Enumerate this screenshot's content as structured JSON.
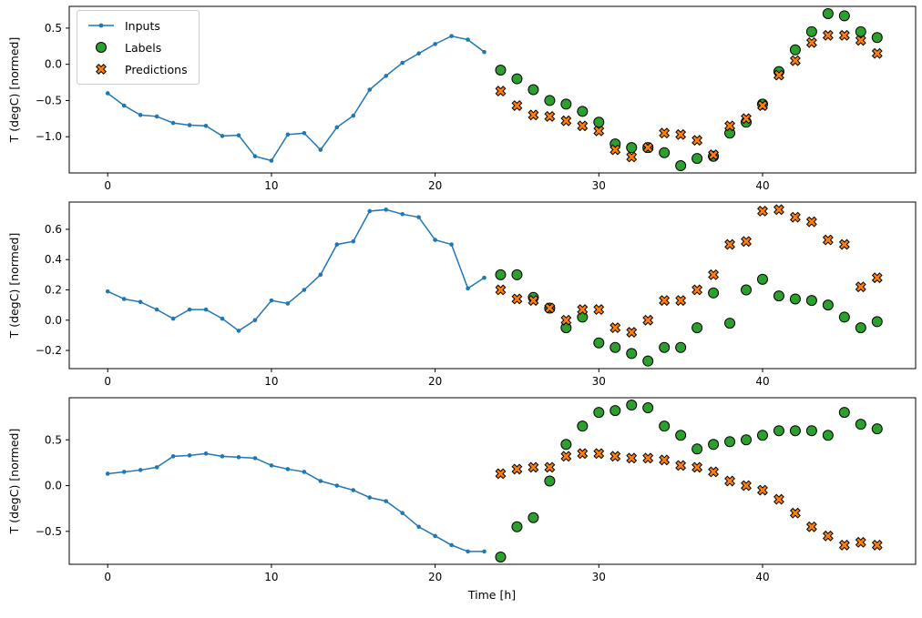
{
  "chart_data": [
    {
      "type": "line",
      "title": "",
      "ylabel": "T (degC) [normed]",
      "xlabel": "",
      "grid": false,
      "legend_position": "upper-left",
      "xlim": [
        -2.35,
        49.35
      ],
      "ylim": [
        -1.5,
        0.8
      ],
      "xticks": [
        0,
        10,
        20,
        30,
        40
      ],
      "yticks": [
        0.5,
        0.0,
        -0.5,
        -1.0
      ],
      "series": [
        {
          "name": "Inputs",
          "marker": "line-dot",
          "color": "#1f77b4",
          "x": [
            0,
            1,
            2,
            3,
            4,
            5,
            6,
            7,
            8,
            9,
            10,
            11,
            12,
            13,
            14,
            15,
            16,
            17,
            18,
            19,
            20,
            21,
            22,
            23
          ],
          "y": [
            -0.4,
            -0.57,
            -0.7,
            -0.72,
            -0.81,
            -0.84,
            -0.85,
            -0.99,
            -0.98,
            -1.27,
            -1.33,
            -0.97,
            -0.95,
            -1.18,
            -0.87,
            -0.71,
            -0.35,
            -0.16,
            0.02,
            0.15,
            0.28,
            0.39,
            0.34,
            0.17
          ]
        },
        {
          "name": "Labels",
          "marker": "circle",
          "color": "#2ca02c",
          "x": [
            24,
            25,
            26,
            27,
            28,
            29,
            30,
            31,
            32,
            33,
            34,
            35,
            36,
            37,
            38,
            39,
            40,
            41,
            42,
            43,
            44,
            45,
            46,
            47
          ],
          "y": [
            -0.08,
            -0.2,
            -0.35,
            -0.5,
            -0.55,
            -0.65,
            -0.8,
            -1.1,
            -1.15,
            -1.15,
            -1.22,
            -1.4,
            -1.3,
            -1.27,
            -0.95,
            -0.8,
            -0.55,
            -0.1,
            0.2,
            0.45,
            0.7,
            0.67,
            0.45,
            0.37
          ]
        },
        {
          "name": "Predictions",
          "marker": "x",
          "color": "#ff7f0e",
          "x": [
            24,
            25,
            26,
            27,
            28,
            29,
            30,
            31,
            32,
            33,
            34,
            35,
            36,
            37,
            38,
            39,
            40,
            41,
            42,
            43,
            44,
            45,
            46,
            47
          ],
          "y": [
            -0.37,
            -0.57,
            -0.7,
            -0.72,
            -0.78,
            -0.85,
            -0.92,
            -1.18,
            -1.28,
            -1.15,
            -0.95,
            -0.97,
            -1.05,
            -1.25,
            -0.85,
            -0.75,
            -0.57,
            -0.15,
            0.05,
            0.3,
            0.4,
            0.4,
            0.33,
            0.15
          ]
        }
      ]
    },
    {
      "type": "line",
      "title": "",
      "ylabel": "T (degC) [normed]",
      "xlabel": "",
      "grid": false,
      "xlim": [
        -2.35,
        49.35
      ],
      "ylim": [
        -0.32,
        0.78
      ],
      "xticks": [
        0,
        10,
        20,
        30,
        40
      ],
      "yticks": [
        0.6,
        0.4,
        0.2,
        0.0,
        -0.2
      ],
      "series": [
        {
          "name": "Inputs",
          "marker": "line-dot",
          "color": "#1f77b4",
          "x": [
            0,
            1,
            2,
            3,
            4,
            5,
            6,
            7,
            8,
            9,
            10,
            11,
            12,
            13,
            14,
            15,
            16,
            17,
            18,
            19,
            20,
            21,
            22,
            23
          ],
          "y": [
            0.19,
            0.14,
            0.12,
            0.07,
            0.01,
            0.07,
            0.07,
            0.01,
            -0.07,
            0.0,
            0.13,
            0.11,
            0.2,
            0.3,
            0.5,
            0.52,
            0.72,
            0.73,
            0.7,
            0.68,
            0.53,
            0.5,
            0.21,
            0.28
          ]
        },
        {
          "name": "Labels",
          "marker": "circle",
          "color": "#2ca02c",
          "x": [
            24,
            25,
            26,
            27,
            28,
            29,
            30,
            31,
            32,
            33,
            34,
            35,
            36,
            37,
            38,
            39,
            40,
            41,
            42,
            43,
            44,
            45,
            46,
            47
          ],
          "y": [
            0.3,
            0.3,
            0.15,
            0.08,
            -0.05,
            0.02,
            -0.15,
            -0.18,
            -0.22,
            -0.27,
            -0.18,
            -0.18,
            -0.05,
            0.18,
            -0.02,
            0.2,
            0.27,
            0.16,
            0.14,
            0.13,
            0.1,
            0.02,
            -0.05,
            -0.01
          ]
        },
        {
          "name": "Predictions",
          "marker": "x",
          "color": "#ff7f0e",
          "x": [
            24,
            25,
            26,
            27,
            28,
            29,
            30,
            31,
            32,
            33,
            34,
            35,
            36,
            37,
            38,
            39,
            40,
            41,
            42,
            43,
            44,
            45,
            46,
            47
          ],
          "y": [
            0.2,
            0.14,
            0.13,
            0.08,
            0.0,
            0.07,
            0.07,
            -0.05,
            -0.08,
            0.0,
            0.13,
            0.13,
            0.2,
            0.3,
            0.5,
            0.52,
            0.72,
            0.73,
            0.68,
            0.65,
            0.53,
            0.5,
            0.22,
            0.28
          ]
        }
      ]
    },
    {
      "type": "line",
      "title": "",
      "ylabel": "T (degC) [normed]",
      "xlabel": "Time [h]",
      "grid": false,
      "xlim": [
        -2.35,
        49.35
      ],
      "ylim": [
        -0.86,
        0.96
      ],
      "xticks": [
        0,
        10,
        20,
        30,
        40
      ],
      "yticks": [
        0.5,
        0.0,
        -0.5
      ],
      "series": [
        {
          "name": "Inputs",
          "marker": "line-dot",
          "color": "#1f77b4",
          "x": [
            0,
            1,
            2,
            3,
            4,
            5,
            6,
            7,
            8,
            9,
            10,
            11,
            12,
            13,
            14,
            15,
            16,
            17,
            18,
            19,
            20,
            21,
            22,
            23
          ],
          "y": [
            0.13,
            0.15,
            0.17,
            0.2,
            0.32,
            0.33,
            0.35,
            0.32,
            0.31,
            0.3,
            0.22,
            0.18,
            0.15,
            0.05,
            0.0,
            -0.05,
            -0.13,
            -0.17,
            -0.3,
            -0.45,
            -0.55,
            -0.65,
            -0.72,
            -0.72
          ]
        },
        {
          "name": "Labels",
          "marker": "circle",
          "color": "#2ca02c",
          "x": [
            24,
            25,
            26,
            27,
            28,
            29,
            30,
            31,
            32,
            33,
            34,
            35,
            36,
            37,
            38,
            39,
            40,
            41,
            42,
            43,
            44,
            45,
            46,
            47
          ],
          "y": [
            -0.78,
            -0.45,
            -0.35,
            0.05,
            0.45,
            0.65,
            0.8,
            0.82,
            0.88,
            0.85,
            0.65,
            0.55,
            0.4,
            0.45,
            0.48,
            0.5,
            0.55,
            0.6,
            0.6,
            0.6,
            0.55,
            0.8,
            0.67,
            0.62
          ]
        },
        {
          "name": "Predictions",
          "marker": "x",
          "color": "#ff7f0e",
          "x": [
            24,
            25,
            26,
            27,
            28,
            29,
            30,
            31,
            32,
            33,
            34,
            35,
            36,
            37,
            38,
            39,
            40,
            41,
            42,
            43,
            44,
            45,
            46,
            47
          ],
          "y": [
            0.13,
            0.18,
            0.2,
            0.2,
            0.32,
            0.35,
            0.35,
            0.32,
            0.3,
            0.3,
            0.28,
            0.22,
            0.2,
            0.15,
            0.05,
            0.0,
            -0.05,
            -0.15,
            -0.3,
            -0.45,
            -0.55,
            -0.65,
            -0.62,
            -0.65
          ]
        }
      ]
    }
  ]
}
